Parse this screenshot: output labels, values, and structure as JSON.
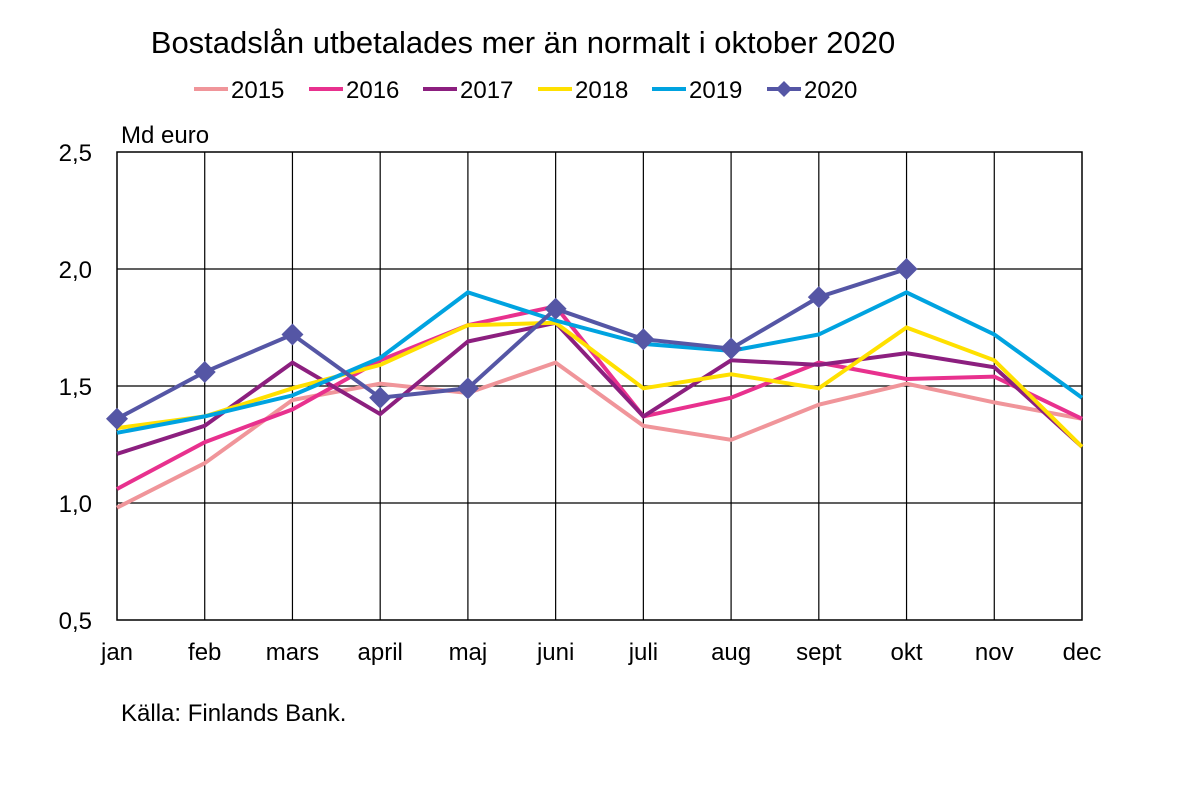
{
  "chart_data": {
    "type": "line",
    "title": "Bostadslån utbetalades mer än normalt i oktober 2020",
    "unit_label": "Md euro",
    "source": "Källa: Finlands Bank.",
    "categories": [
      "jan",
      "feb",
      "mars",
      "april",
      "maj",
      "juni",
      "juli",
      "aug",
      "sept",
      "okt",
      "nov",
      "dec"
    ],
    "y_ticks": [
      "0,5",
      "1,0",
      "1,5",
      "2,0",
      "2,5"
    ],
    "ylim": [
      0.5,
      2.5
    ],
    "grid": true,
    "legend_position": "top",
    "series": [
      {
        "name": "2015",
        "color": "#F0959A",
        "marker": "none",
        "values": [
          0.98,
          1.17,
          1.44,
          1.51,
          1.47,
          1.6,
          1.33,
          1.27,
          1.42,
          1.51,
          1.43,
          1.36
        ]
      },
      {
        "name": "2016",
        "color": "#E8318E",
        "marker": "none",
        "values": [
          1.06,
          1.26,
          1.4,
          1.61,
          1.76,
          1.84,
          1.37,
          1.45,
          1.6,
          1.53,
          1.54,
          1.36
        ]
      },
      {
        "name": "2017",
        "color": "#8C1F7F",
        "marker": "none",
        "values": [
          1.21,
          1.33,
          1.6,
          1.38,
          1.69,
          1.77,
          1.37,
          1.61,
          1.59,
          1.64,
          1.58,
          1.24
        ]
      },
      {
        "name": "2018",
        "color": "#FFE000",
        "marker": "none",
        "values": [
          1.32,
          1.37,
          1.49,
          1.59,
          1.76,
          1.77,
          1.49,
          1.55,
          1.49,
          1.75,
          1.61,
          1.24
        ]
      },
      {
        "name": "2019",
        "color": "#00A3E0",
        "marker": "none",
        "values": [
          1.3,
          1.37,
          1.46,
          1.62,
          1.9,
          1.78,
          1.68,
          1.65,
          1.72,
          1.9,
          1.72,
          1.45
        ]
      },
      {
        "name": "2020",
        "color": "#5556A5",
        "marker": "diamond",
        "values": [
          1.36,
          1.56,
          1.72,
          1.45,
          1.49,
          1.83,
          1.7,
          1.66,
          1.88,
          2.0,
          null,
          null
        ]
      }
    ]
  }
}
